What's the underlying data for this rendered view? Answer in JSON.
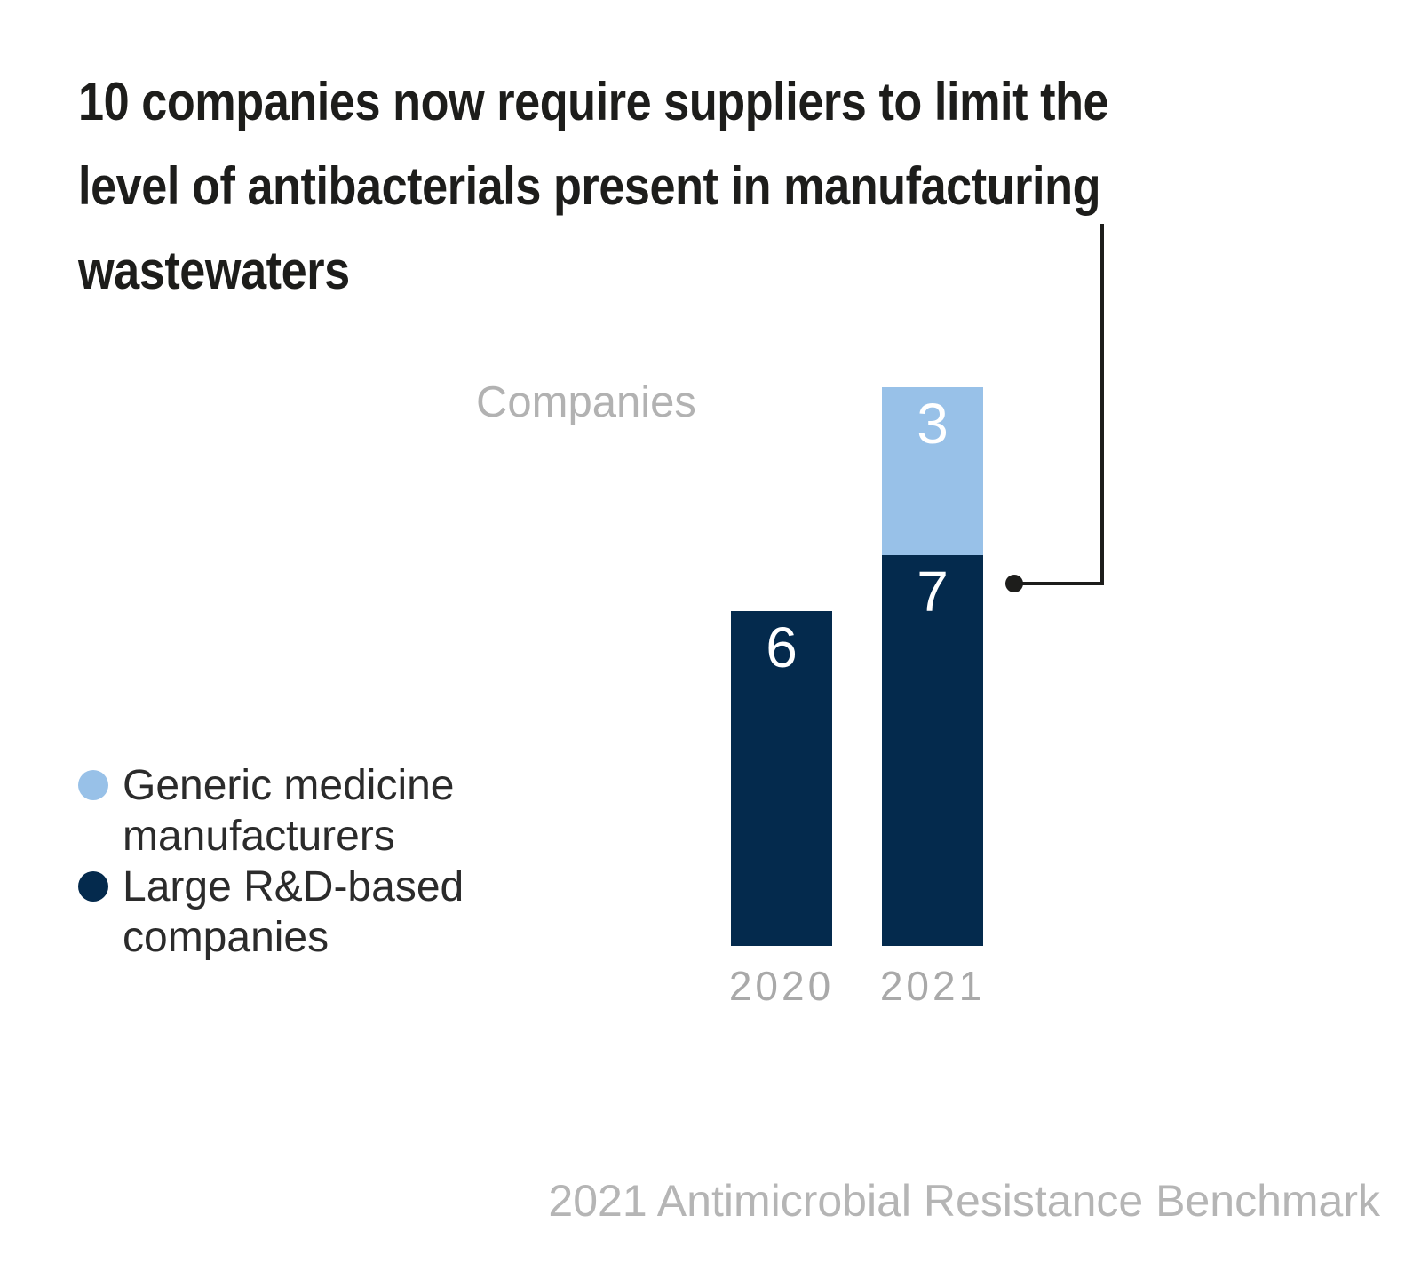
{
  "title": {
    "lines": [
      "10 companies now require suppliers to limit the",
      "level of antibacterials present in manufacturing",
      "wastewaters"
    ]
  },
  "axis": {
    "y_label": "Companies"
  },
  "chart_data": {
    "type": "bar",
    "stacked": true,
    "title": "10 companies now require suppliers to limit the level of antibacterials present in manufacturing wastewaters",
    "ylabel": "Companies",
    "categories": [
      "2020",
      "2021"
    ],
    "series": [
      {
        "name": "Large R&D-based companies",
        "color": "#042a4d",
        "values": [
          6,
          7
        ]
      },
      {
        "name": "Generic medicine manufacturers",
        "color": "#98c1e8",
        "values": [
          0,
          3
        ]
      }
    ],
    "value_labels": "inside-top",
    "gridlines": false,
    "legend_position": "left",
    "annotation": "elbow line with dot pointing from title to 2021 bar"
  },
  "legend": {
    "items": [
      {
        "color": "#98c1e8",
        "lines": [
          "Generic medicine",
          "manufacturers"
        ]
      },
      {
        "color": "#042a4d",
        "lines": [
          "Large R&D-based",
          "companies"
        ]
      }
    ]
  },
  "footer": {
    "text": "2021 Antimicrobial Resistance Benchmark"
  },
  "colors": {
    "background": "#ffffff",
    "title_text": "#1d1d1b",
    "callout_line": "#1d1d1b",
    "muted_label": "#a9a9a9",
    "navy": "#042a4d",
    "light_blue": "#98c1e8"
  }
}
